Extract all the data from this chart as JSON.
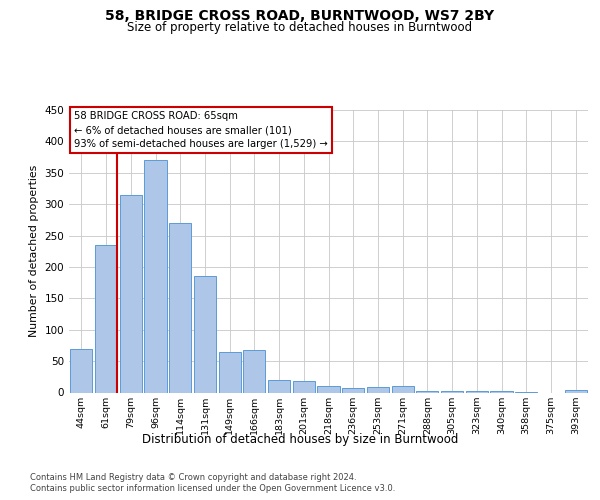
{
  "title": "58, BRIDGE CROSS ROAD, BURNTWOOD, WS7 2BY",
  "subtitle": "Size of property relative to detached houses in Burntwood",
  "xlabel": "Distribution of detached houses by size in Burntwood",
  "ylabel": "Number of detached properties",
  "categories": [
    "44sqm",
    "61sqm",
    "79sqm",
    "96sqm",
    "114sqm",
    "131sqm",
    "149sqm",
    "166sqm",
    "183sqm",
    "201sqm",
    "218sqm",
    "236sqm",
    "253sqm",
    "271sqm",
    "288sqm",
    "305sqm",
    "323sqm",
    "340sqm",
    "358sqm",
    "375sqm",
    "393sqm"
  ],
  "values": [
    70,
    235,
    315,
    370,
    270,
    185,
    65,
    68,
    20,
    18,
    10,
    7,
    9,
    10,
    2,
    2,
    2,
    2,
    1,
    0,
    4
  ],
  "bar_color": "#aec6e8",
  "bar_edge_color": "#5b9bd5",
  "ylim": [
    0,
    450
  ],
  "yticks": [
    0,
    50,
    100,
    150,
    200,
    250,
    300,
    350,
    400,
    450
  ],
  "vline_x": 1.45,
  "annotation_text": "58 BRIDGE CROSS ROAD: 65sqm\n← 6% of detached houses are smaller (101)\n93% of semi-detached houses are larger (1,529) →",
  "highlight_line_color": "#cc0000",
  "annotation_edge_color": "#cc0000",
  "footer_line1": "Contains HM Land Registry data © Crown copyright and database right 2024.",
  "footer_line2": "Contains public sector information licensed under the Open Government Licence v3.0.",
  "background_color": "#ffffff",
  "grid_color": "#c8c8c8"
}
